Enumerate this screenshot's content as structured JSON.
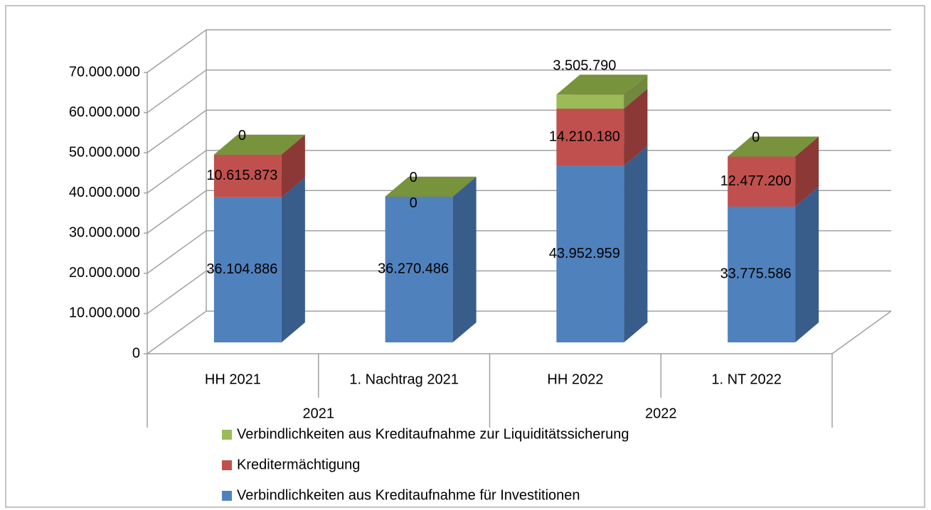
{
  "chart_data": {
    "type": "bar3d_stacked",
    "categories": [
      "HH 2021",
      "1. Nachtrag 2021",
      "HH 2022",
      "1. NT 2022"
    ],
    "groups": [
      {
        "label": "2021",
        "span": 2
      },
      {
        "label": "2022",
        "span": 2
      }
    ],
    "series": [
      {
        "name": "Verbindlichkeiten aus Kreditaufnahme für Investitionen",
        "color": "#4f81bd",
        "side": "#385d8a",
        "top": "#7a9fd3",
        "values": [
          36104886,
          36270486,
          43952959,
          33775586
        ],
        "value_labels": [
          "36.104.886",
          "36.270.486",
          "43.952.959",
          "33.775.586"
        ]
      },
      {
        "name": "Kreditermächtigung",
        "color": "#c0504d",
        "side": "#8c3836",
        "top": "#a54744",
        "values": [
          10615873,
          0,
          14210180,
          12477200
        ],
        "value_labels": [
          "10.615.873",
          "0",
          "14.210.180",
          "12.477.200"
        ]
      },
      {
        "name": "Verbindlichkeiten aus Kreditaufnahme zur Liquiditätssicherung",
        "color": "#9bbb59",
        "side": "#71893f",
        "top": "#77933c",
        "values": [
          0,
          0,
          3505790,
          0
        ],
        "value_labels": [
          "0",
          "0",
          "3.505.790",
          "0"
        ]
      }
    ],
    "ylim": [
      0,
      70000000
    ],
    "yticks": [
      0,
      {
        "value": 10000000,
        "label": "10.000.000"
      },
      {
        "value": 20000000,
        "label": "20.000.000"
      },
      {
        "value": 30000000,
        "label": "30.000.000"
      },
      {
        "value": 40000000,
        "label": "40.000.000"
      },
      {
        "value": 50000000,
        "label": "50.000.000"
      },
      {
        "value": 60000000,
        "label": "60.000.000"
      },
      {
        "value": 70000000,
        "label": "70.000.000"
      }
    ],
    "grid": true
  }
}
